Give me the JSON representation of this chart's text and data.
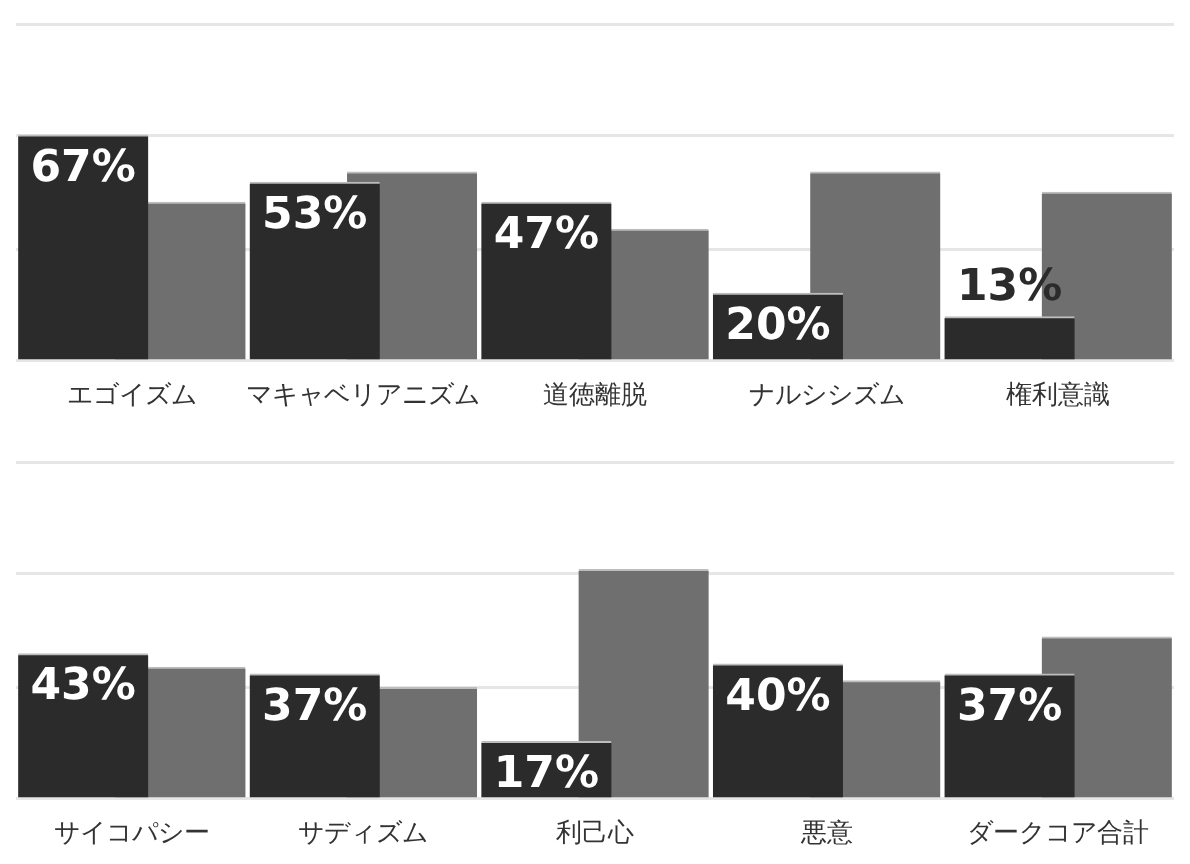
{
  "chart_data": [
    {
      "type": "bar",
      "categories": [
        "エゴイズム",
        "マキャベリアニズム",
        "道徳離脱",
        "ナルシシズム",
        "権利意識"
      ],
      "ylim": [
        0,
        100
      ],
      "yticks": [
        {
          "value": 0,
          "label": null
        },
        {
          "value": 33,
          "label": null
        },
        {
          "value": 67,
          "label": null
        },
        {
          "value": 100,
          "label": null
        }
      ],
      "grid": "y",
      "tick_labels": "x",
      "series": [
        {
          "color": "#2b2b2b",
          "values": [
            67,
            53,
            47,
            20,
            13
          ],
          "value_labels": [
            "67%",
            "53%",
            "47%",
            "20%",
            "13%"
          ]
        },
        {
          "color": "#6f6f6f",
          "values": [
            47,
            56,
            39,
            56,
            50
          ]
        }
      ]
    },
    {
      "type": "bar",
      "categories": [
        "サイコパシー",
        "サディズム",
        "利己心",
        "悪意",
        "ダークコア合計"
      ],
      "ylim": [
        0,
        100
      ],
      "yticks": [
        {
          "value": 0,
          "label": null
        },
        {
          "value": 33,
          "label": null
        },
        {
          "value": 67,
          "label": null
        },
        {
          "value": 100,
          "label": null
        }
      ],
      "grid": "y",
      "tick_labels": "x",
      "series": [
        {
          "color": "#2b2b2b",
          "values": [
            43,
            37,
            17,
            40,
            37
          ],
          "value_labels": [
            "43%",
            "37%",
            "17%",
            "40%",
            "37%"
          ]
        },
        {
          "color": "#6f6f6f",
          "values": [
            39,
            33,
            68,
            35,
            48
          ]
        }
      ]
    }
  ]
}
